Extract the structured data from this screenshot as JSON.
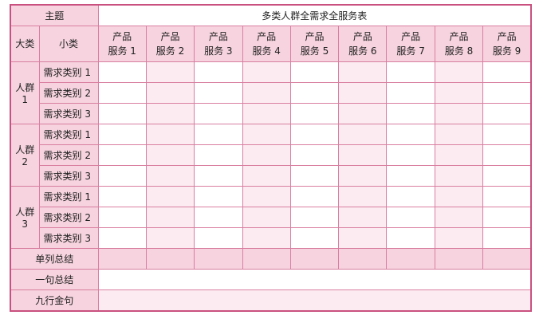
{
  "header": {
    "topic_label": "主题",
    "title": "多类人群全需求全服务表",
    "major_label": "大类",
    "minor_label": "小类"
  },
  "products": [
    {
      "line1": "产品",
      "line2": "服务 1"
    },
    {
      "line1": "产品",
      "line2": "服务 2"
    },
    {
      "line1": "产品",
      "line2": "服务 3"
    },
    {
      "line1": "产品",
      "line2": "服务 4"
    },
    {
      "line1": "产品",
      "line2": "服务 5"
    },
    {
      "line1": "产品",
      "line2": "服务 6"
    },
    {
      "line1": "产品",
      "line2": "服务 7"
    },
    {
      "line1": "产品",
      "line2": "服务 8"
    },
    {
      "line1": "产品",
      "line2": "服务 9"
    }
  ],
  "groups": [
    {
      "line1": "人群",
      "line2": "1",
      "needs": [
        "需求类别 1",
        "需求类别 2",
        "需求类别 3"
      ]
    },
    {
      "line1": "人群",
      "line2": "2",
      "needs": [
        "需求类别 1",
        "需求类别 2",
        "需求类别 3"
      ]
    },
    {
      "line1": "人群",
      "line2": "3",
      "needs": [
        "需求类别 1",
        "需求类别 2",
        "需求类别 3"
      ]
    }
  ],
  "footer": {
    "column_summary": "单列总结",
    "one_sentence": "一句总结",
    "nine_lines": "九行金句"
  },
  "colors": {
    "border": "#c9507f",
    "header": "#f6d3de",
    "alt_column": "#fcecf1"
  }
}
